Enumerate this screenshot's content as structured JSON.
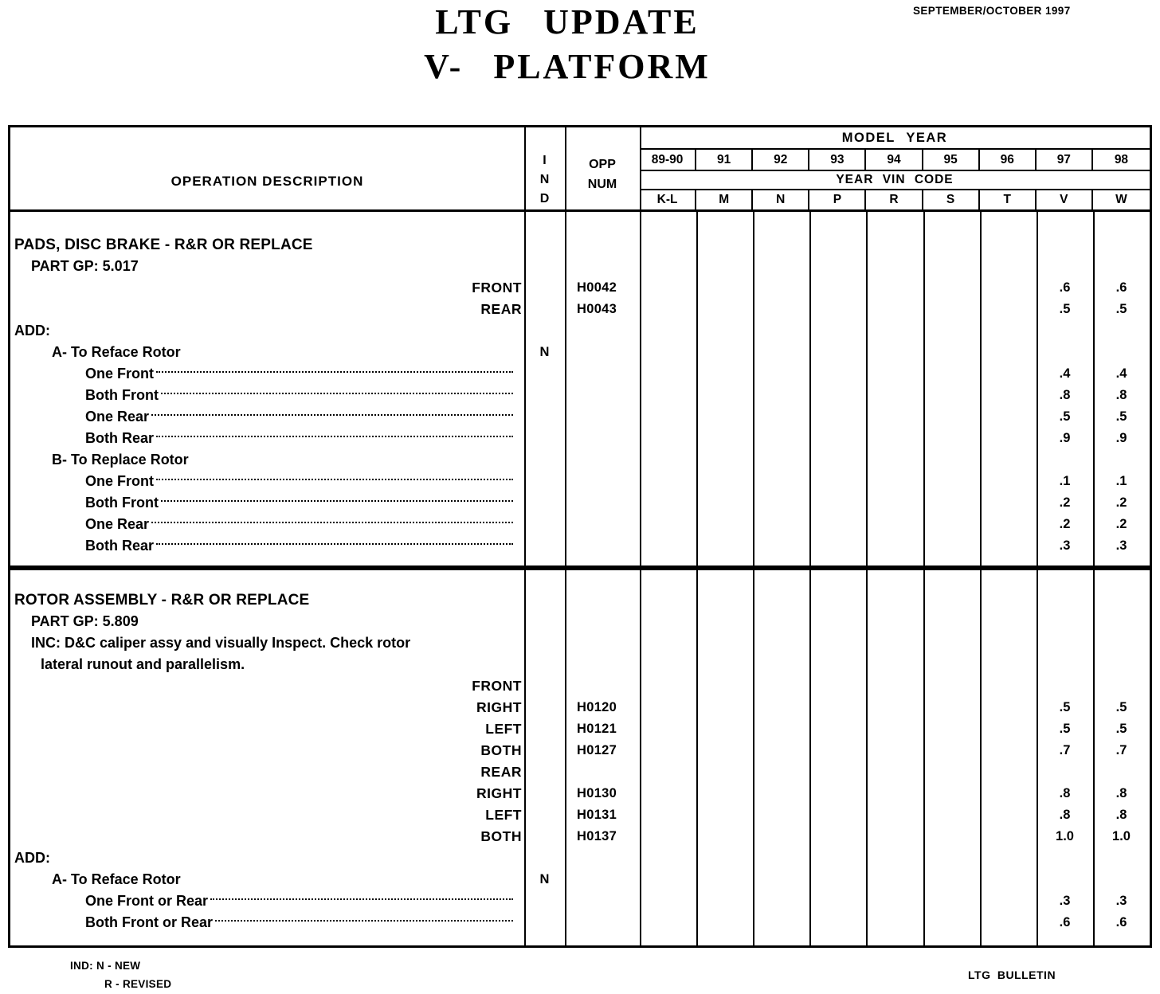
{
  "page": {
    "title_line1": "LTG  UPDATE",
    "title_line2": "V- PLATFORM",
    "date": "SEPTEMBER/OCTOBER 1997"
  },
  "table": {
    "headers": {
      "operation": "OPERATION  DESCRIPTION",
      "ind_letters": [
        "I",
        "N",
        "D"
      ],
      "opp_line1": "OPP",
      "opp_line2": "NUM",
      "model_year": "MODEL  YEAR",
      "years": [
        "89-90",
        "91",
        "92",
        "93",
        "94",
        "95",
        "96",
        "97",
        "98"
      ],
      "vin_label": "YEAR  VIN  CODE",
      "vin_codes": [
        "K-L",
        "M",
        "N",
        "P",
        "R",
        "S",
        "T",
        "V",
        "W"
      ]
    },
    "sections": [
      {
        "rows": [
          {
            "desc": "PADS, DISC BRAKE - R&R OR REPLACE",
            "ind": "",
            "opp": "",
            "v97": "",
            "v98": ""
          },
          {
            "desc": "PART GP: 5.017",
            "ind": "",
            "opp": "",
            "v97": "",
            "v98": ""
          },
          {
            "desc": "FRONT",
            "ind": "",
            "opp": "H0042",
            "v97": ".6",
            "v98": ".6"
          },
          {
            "desc": "REAR",
            "ind": "",
            "opp": "H0043",
            "v97": ".5",
            "v98": ".5"
          },
          {
            "desc": "ADD:",
            "ind": "",
            "opp": "",
            "v97": "",
            "v98": ""
          },
          {
            "desc": "A- To Reface Rotor",
            "ind": "N",
            "opp": "",
            "v97": "",
            "v98": ""
          },
          {
            "desc": "One Front",
            "ind": "",
            "opp": "",
            "v97": ".4",
            "v98": ".4"
          },
          {
            "desc": "Both Front",
            "ind": "",
            "opp": "",
            "v97": ".8",
            "v98": ".8"
          },
          {
            "desc": "One Rear",
            "ind": "",
            "opp": "",
            "v97": ".5",
            "v98": ".5"
          },
          {
            "desc": "Both Rear",
            "ind": "",
            "opp": "",
            "v97": ".9",
            "v98": ".9"
          },
          {
            "desc": "B- To Replace Rotor",
            "ind": "",
            "opp": "",
            "v97": "",
            "v98": ""
          },
          {
            "desc": "One Front",
            "ind": "",
            "opp": "",
            "v97": ".1",
            "v98": ".1"
          },
          {
            "desc": "Both Front",
            "ind": "",
            "opp": "",
            "v97": ".2",
            "v98": ".2"
          },
          {
            "desc": "One Rear",
            "ind": "",
            "opp": "",
            "v97": ".2",
            "v98": ".2"
          },
          {
            "desc": "Both Rear",
            "ind": "",
            "opp": "",
            "v97": ".3",
            "v98": ".3"
          }
        ]
      },
      {
        "rows": [
          {
            "desc": "ROTOR ASSEMBLY - R&R OR REPLACE",
            "ind": "",
            "opp": "",
            "v97": "",
            "v98": ""
          },
          {
            "desc": "PART GP: 5.809",
            "ind": "",
            "opp": "",
            "v97": "",
            "v98": ""
          },
          {
            "desc": "INC: D&C caliper assy and visually Inspect. Check rotor",
            "ind": "",
            "opp": "",
            "v97": "",
            "v98": ""
          },
          {
            "desc": "lateral runout and parallelism.",
            "ind": "",
            "opp": "",
            "v97": "",
            "v98": ""
          },
          {
            "desc": "FRONT",
            "ind": "",
            "opp": "",
            "v97": "",
            "v98": ""
          },
          {
            "desc": "RIGHT",
            "ind": "",
            "opp": "H0120",
            "v97": ".5",
            "v98": ".5"
          },
          {
            "desc": "LEFT",
            "ind": "",
            "opp": "H0121",
            "v97": ".5",
            "v98": ".5"
          },
          {
            "desc": "BOTH",
            "ind": "",
            "opp": "H0127",
            "v97": ".7",
            "v98": ".7"
          },
          {
            "desc": "REAR",
            "ind": "",
            "opp": "",
            "v97": "",
            "v98": ""
          },
          {
            "desc": "RIGHT",
            "ind": "",
            "opp": "H0130",
            "v97": ".8",
            "v98": ".8"
          },
          {
            "desc": "LEFT",
            "ind": "",
            "opp": "H0131",
            "v97": ".8",
            "v98": ".8"
          },
          {
            "desc": "BOTH",
            "ind": "",
            "opp": "H0137",
            "v97": "1.0",
            "v98": "1.0"
          },
          {
            "desc": "ADD:",
            "ind": "",
            "opp": "",
            "v97": "",
            "v98": ""
          },
          {
            "desc": "A- To Reface Rotor",
            "ind": "N",
            "opp": "",
            "v97": "",
            "v98": ""
          },
          {
            "desc": "One Front or Rear",
            "ind": "",
            "opp": "",
            "v97": ".3",
            "v98": ".3"
          },
          {
            "desc": "Both Front or Rear",
            "ind": "",
            "opp": "",
            "v97": ".6",
            "v98": ".6"
          }
        ]
      }
    ]
  },
  "footer": {
    "legend_line1": "IND: N - NEW",
    "legend_line2": "R - REVISED",
    "bulletin": "LTG  BULLETIN"
  }
}
